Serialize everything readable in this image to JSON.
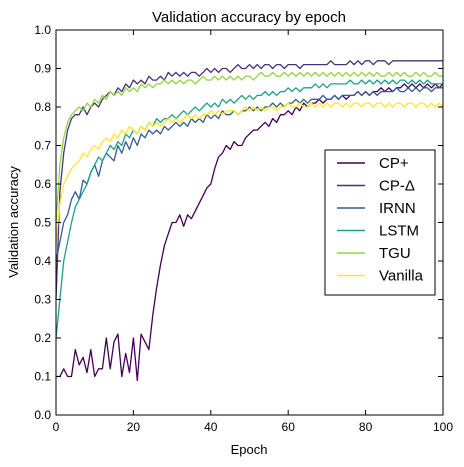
{
  "chart_data": {
    "type": "line",
    "title": "Validation accuracy by epoch",
    "xlabel": "Epoch",
    "ylabel": "Validation accuracy",
    "xlim": [
      0,
      100
    ],
    "ylim": [
      0.0,
      1.0
    ],
    "xticks": [
      "0",
      "20",
      "40",
      "60",
      "80",
      "100"
    ],
    "yticks": [
      "0.0",
      "0.1",
      "0.2",
      "0.3",
      "0.4",
      "0.5",
      "0.6",
      "0.7",
      "0.8",
      "0.9",
      "1.0"
    ],
    "grid": false,
    "legend_position": "center-right",
    "x": [
      0,
      1,
      2,
      3,
      4,
      5,
      6,
      7,
      8,
      9,
      10,
      11,
      12,
      13,
      14,
      15,
      16,
      17,
      18,
      19,
      20,
      21,
      22,
      23,
      24,
      25,
      26,
      27,
      28,
      29,
      30,
      31,
      32,
      33,
      34,
      35,
      36,
      37,
      38,
      39,
      40,
      41,
      42,
      43,
      44,
      45,
      46,
      47,
      48,
      49,
      50,
      51,
      52,
      53,
      54,
      55,
      56,
      57,
      58,
      59,
      60,
      61,
      62,
      63,
      64,
      65,
      66,
      67,
      68,
      69,
      70,
      71,
      72,
      73,
      74,
      75,
      76,
      77,
      78,
      79,
      80,
      81,
      82,
      83,
      84,
      85,
      86,
      87,
      88,
      89,
      90,
      91,
      92,
      93,
      94,
      95,
      96,
      97,
      98,
      99,
      100
    ],
    "series": [
      {
        "name": "CP+",
        "color": "#440154",
        "values": [
          0.1,
          0.1,
          0.12,
          0.1,
          0.1,
          0.17,
          0.13,
          0.15,
          0.11,
          0.17,
          0.1,
          0.12,
          0.12,
          0.2,
          0.12,
          0.19,
          0.21,
          0.1,
          0.16,
          0.11,
          0.2,
          0.09,
          0.21,
          0.19,
          0.17,
          0.26,
          0.33,
          0.39,
          0.44,
          0.47,
          0.5,
          0.5,
          0.52,
          0.49,
          0.52,
          0.51,
          0.53,
          0.55,
          0.57,
          0.59,
          0.6,
          0.64,
          0.67,
          0.68,
          0.7,
          0.69,
          0.71,
          0.7,
          0.7,
          0.72,
          0.73,
          0.74,
          0.74,
          0.75,
          0.76,
          0.75,
          0.77,
          0.76,
          0.78,
          0.78,
          0.79,
          0.78,
          0.8,
          0.79,
          0.81,
          0.8,
          0.81,
          0.81,
          0.82,
          0.81,
          0.82,
          0.82,
          0.83,
          0.82,
          0.83,
          0.82,
          0.83,
          0.83,
          0.84,
          0.83,
          0.84,
          0.83,
          0.84,
          0.84,
          0.85,
          0.84,
          0.85,
          0.84,
          0.85,
          0.85,
          0.86,
          0.85,
          0.86,
          0.85,
          0.86,
          0.85,
          0.86,
          0.85,
          0.86,
          0.85,
          0.86
        ]
      },
      {
        "name": "CP-Δ",
        "color": "#46337e",
        "values": [
          0.3,
          0.58,
          0.68,
          0.74,
          0.77,
          0.78,
          0.78,
          0.8,
          0.78,
          0.8,
          0.81,
          0.8,
          0.82,
          0.83,
          0.84,
          0.83,
          0.85,
          0.84,
          0.86,
          0.85,
          0.87,
          0.86,
          0.87,
          0.86,
          0.88,
          0.87,
          0.87,
          0.88,
          0.87,
          0.89,
          0.88,
          0.89,
          0.88,
          0.89,
          0.88,
          0.89,
          0.89,
          0.88,
          0.89,
          0.9,
          0.89,
          0.9,
          0.89,
          0.9,
          0.9,
          0.89,
          0.9,
          0.91,
          0.9,
          0.9,
          0.91,
          0.9,
          0.91,
          0.9,
          0.91,
          0.91,
          0.9,
          0.91,
          0.91,
          0.9,
          0.91,
          0.91,
          0.91,
          0.9,
          0.91,
          0.91,
          0.91,
          0.91,
          0.91,
          0.91,
          0.91,
          0.92,
          0.91,
          0.91,
          0.91,
          0.91,
          0.92,
          0.91,
          0.92,
          0.91,
          0.92,
          0.92,
          0.91,
          0.92,
          0.92,
          0.92,
          0.91,
          0.92,
          0.92,
          0.92,
          0.92,
          0.92,
          0.92,
          0.92,
          0.92,
          0.92,
          0.92,
          0.92,
          0.92,
          0.92,
          0.92
        ]
      },
      {
        "name": "IRNN",
        "color": "#365c8d",
        "values": [
          0.4,
          0.45,
          0.5,
          0.52,
          0.56,
          0.58,
          0.56,
          0.61,
          0.6,
          0.63,
          0.65,
          0.62,
          0.66,
          0.68,
          0.67,
          0.66,
          0.7,
          0.68,
          0.71,
          0.69,
          0.72,
          0.7,
          0.73,
          0.72,
          0.74,
          0.73,
          0.74,
          0.73,
          0.75,
          0.74,
          0.75,
          0.76,
          0.75,
          0.76,
          0.75,
          0.77,
          0.76,
          0.77,
          0.76,
          0.78,
          0.77,
          0.78,
          0.77,
          0.79,
          0.78,
          0.78,
          0.79,
          0.78,
          0.79,
          0.79,
          0.8,
          0.79,
          0.8,
          0.79,
          0.8,
          0.8,
          0.81,
          0.8,
          0.81,
          0.8,
          0.81,
          0.81,
          0.82,
          0.81,
          0.82,
          0.81,
          0.82,
          0.82,
          0.82,
          0.83,
          0.82,
          0.82,
          0.83,
          0.82,
          0.83,
          0.83,
          0.83,
          0.83,
          0.84,
          0.83,
          0.84,
          0.83,
          0.84,
          0.83,
          0.84,
          0.84,
          0.84,
          0.84,
          0.85,
          0.84,
          0.84,
          0.85,
          0.84,
          0.85,
          0.84,
          0.85,
          0.85,
          0.84,
          0.85,
          0.85,
          0.85
        ]
      },
      {
        "name": "LSTM",
        "color": "#1fa187",
        "values": [
          0.2,
          0.3,
          0.4,
          0.45,
          0.5,
          0.54,
          0.56,
          0.58,
          0.6,
          0.63,
          0.65,
          0.67,
          0.66,
          0.68,
          0.7,
          0.69,
          0.71,
          0.7,
          0.73,
          0.72,
          0.74,
          0.73,
          0.75,
          0.74,
          0.76,
          0.75,
          0.77,
          0.76,
          0.77,
          0.77,
          0.78,
          0.77,
          0.78,
          0.79,
          0.78,
          0.79,
          0.8,
          0.79,
          0.8,
          0.81,
          0.8,
          0.81,
          0.8,
          0.82,
          0.81,
          0.82,
          0.81,
          0.82,
          0.83,
          0.82,
          0.83,
          0.82,
          0.83,
          0.83,
          0.84,
          0.83,
          0.84,
          0.83,
          0.84,
          0.84,
          0.85,
          0.84,
          0.85,
          0.84,
          0.85,
          0.85,
          0.85,
          0.86,
          0.85,
          0.86,
          0.85,
          0.86,
          0.86,
          0.86,
          0.86,
          0.86,
          0.87,
          0.86,
          0.86,
          0.87,
          0.86,
          0.87,
          0.86,
          0.87,
          0.86,
          0.87,
          0.86,
          0.87,
          0.86,
          0.87,
          0.87,
          0.86,
          0.87,
          0.86,
          0.87,
          0.86,
          0.87,
          0.86,
          0.86,
          0.86,
          0.86
        ]
      },
      {
        "name": "TGU",
        "color": "#8fd744",
        "values": [
          0.5,
          0.65,
          0.72,
          0.76,
          0.78,
          0.79,
          0.8,
          0.79,
          0.81,
          0.8,
          0.82,
          0.81,
          0.83,
          0.82,
          0.84,
          0.83,
          0.84,
          0.83,
          0.85,
          0.84,
          0.85,
          0.84,
          0.86,
          0.85,
          0.86,
          0.85,
          0.86,
          0.86,
          0.87,
          0.86,
          0.87,
          0.86,
          0.87,
          0.86,
          0.87,
          0.87,
          0.86,
          0.87,
          0.88,
          0.87,
          0.87,
          0.88,
          0.87,
          0.88,
          0.87,
          0.88,
          0.87,
          0.88,
          0.87,
          0.88,
          0.88,
          0.87,
          0.88,
          0.89,
          0.88,
          0.88,
          0.89,
          0.88,
          0.88,
          0.89,
          0.88,
          0.89,
          0.88,
          0.89,
          0.88,
          0.89,
          0.88,
          0.89,
          0.88,
          0.89,
          0.88,
          0.89,
          0.88,
          0.89,
          0.88,
          0.89,
          0.88,
          0.89,
          0.88,
          0.89,
          0.88,
          0.89,
          0.88,
          0.89,
          0.88,
          0.88,
          0.89,
          0.88,
          0.89,
          0.88,
          0.89,
          0.88,
          0.88,
          0.89,
          0.88,
          0.89,
          0.88,
          0.88,
          0.89,
          0.88,
          0.88
        ]
      },
      {
        "name": "Vanilla",
        "color": "#fde725",
        "values": [
          0.45,
          0.55,
          0.6,
          0.62,
          0.64,
          0.65,
          0.66,
          0.68,
          0.67,
          0.69,
          0.7,
          0.69,
          0.71,
          0.72,
          0.71,
          0.73,
          0.72,
          0.74,
          0.73,
          0.75,
          0.74,
          0.73,
          0.75,
          0.74,
          0.76,
          0.75,
          0.76,
          0.75,
          0.76,
          0.77,
          0.76,
          0.77,
          0.76,
          0.77,
          0.78,
          0.77,
          0.78,
          0.77,
          0.78,
          0.78,
          0.79,
          0.78,
          0.79,
          0.78,
          0.79,
          0.79,
          0.79,
          0.78,
          0.79,
          0.8,
          0.79,
          0.8,
          0.79,
          0.8,
          0.79,
          0.8,
          0.8,
          0.79,
          0.8,
          0.8,
          0.81,
          0.8,
          0.8,
          0.81,
          0.8,
          0.8,
          0.81,
          0.8,
          0.81,
          0.8,
          0.81,
          0.8,
          0.81,
          0.81,
          0.8,
          0.81,
          0.8,
          0.81,
          0.81,
          0.8,
          0.81,
          0.81,
          0.8,
          0.81,
          0.81,
          0.8,
          0.81,
          0.8,
          0.81,
          0.81,
          0.8,
          0.81,
          0.81,
          0.8,
          0.81,
          0.81,
          0.8,
          0.81,
          0.8,
          0.81,
          0.8
        ]
      }
    ]
  }
}
